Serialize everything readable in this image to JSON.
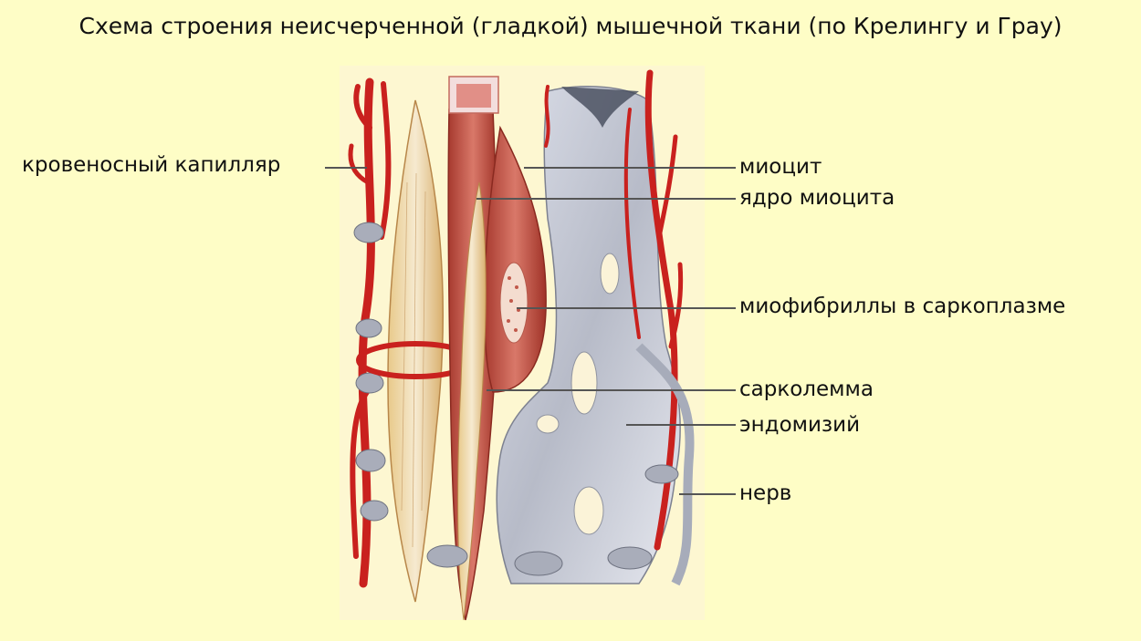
{
  "title": "Схема строения неисчерченной (гладкой) мышечной ткани (по Крелингу и Грау)",
  "labels": {
    "capillary": "кровеносный капилляр",
    "myocyte": "миоцит",
    "nucleus": "ядро миоцита",
    "myofibrils": "миофибриллы в саркоплазме",
    "sarcolemma": "сарколемма",
    "endomysium": "эндомизий",
    "nerve": "нерв"
  },
  "colors": {
    "background": "#fefdc6",
    "vessel": "#c9211e",
    "myocyte_pale": "#ecd9a6",
    "myocyte_red": "#c65a4c",
    "connective_tissue": "#c9ccd6",
    "leader_line": "#555555"
  }
}
